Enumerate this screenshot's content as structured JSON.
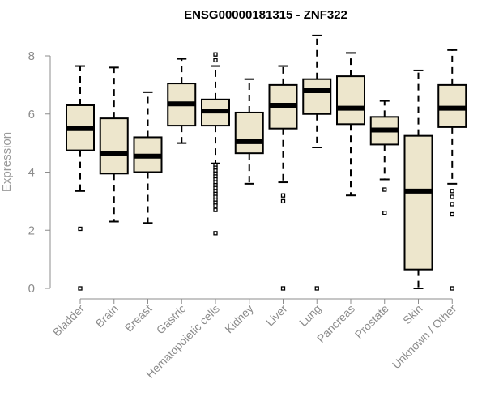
{
  "chart_data": {
    "type": "box",
    "title": "ENSG00000181315 - ZNF322",
    "xlabel": "",
    "ylabel": "Expression",
    "ylim": [
      0,
      8.8
    ],
    "yticks": [
      0,
      2,
      4,
      6,
      8
    ],
    "grid": false,
    "box_fill": "#ede6cc",
    "categories": [
      "Bladder",
      "Brain",
      "Breast",
      "Gastric",
      "Hematopoietic cells",
      "Kidney",
      "Liver",
      "Lung",
      "Pancreas",
      "Prostate",
      "Skin",
      "Unknown / Other"
    ],
    "boxes": [
      {
        "whisker_low": 3.35,
        "q1": 4.75,
        "median": 5.5,
        "q3": 6.3,
        "whisker_high": 7.65,
        "outliers": [
          2.05,
          0.0
        ]
      },
      {
        "whisker_low": 2.3,
        "q1": 3.95,
        "median": 4.65,
        "q3": 5.85,
        "whisker_high": 7.6,
        "outliers": []
      },
      {
        "whisker_low": 2.25,
        "q1": 4.0,
        "median": 4.55,
        "q3": 5.2,
        "whisker_high": 6.75,
        "outliers": []
      },
      {
        "whisker_low": 5.0,
        "q1": 5.6,
        "median": 6.35,
        "q3": 7.05,
        "whisker_high": 7.9,
        "outliers": []
      },
      {
        "whisker_low": 4.3,
        "q1": 5.6,
        "median": 6.1,
        "q3": 6.5,
        "whisker_high": 7.65,
        "outliers": [
          8.05,
          7.85,
          4.25,
          4.15,
          4.05,
          3.95,
          3.85,
          3.75,
          3.65,
          3.55,
          3.45,
          3.35,
          3.25,
          3.15,
          3.05,
          2.95,
          2.85,
          2.7,
          1.9
        ]
      },
      {
        "whisker_low": 3.6,
        "q1": 4.65,
        "median": 5.05,
        "q3": 6.05,
        "whisker_high": 7.2,
        "outliers": []
      },
      {
        "whisker_low": 3.65,
        "q1": 5.5,
        "median": 6.3,
        "q3": 7.0,
        "whisker_high": 7.65,
        "outliers": [
          3.2,
          3.0,
          0.0
        ]
      },
      {
        "whisker_low": 4.85,
        "q1": 6.0,
        "median": 6.8,
        "q3": 7.2,
        "whisker_high": 8.7,
        "outliers": [
          0.0
        ]
      },
      {
        "whisker_low": 3.2,
        "q1": 5.65,
        "median": 6.2,
        "q3": 7.3,
        "whisker_high": 8.1,
        "outliers": []
      },
      {
        "whisker_low": 3.75,
        "q1": 4.95,
        "median": 5.45,
        "q3": 5.9,
        "whisker_high": 6.45,
        "outliers": [
          3.4,
          2.6
        ]
      },
      {
        "whisker_low": 0.0,
        "q1": 0.65,
        "median": 3.35,
        "q3": 5.25,
        "whisker_high": 7.5,
        "outliers": []
      },
      {
        "whisker_low": 3.6,
        "q1": 5.55,
        "median": 6.2,
        "q3": 7.0,
        "whisker_high": 8.2,
        "outliers": [
          3.35,
          3.15,
          2.9,
          2.55,
          0.0
        ]
      }
    ]
  }
}
